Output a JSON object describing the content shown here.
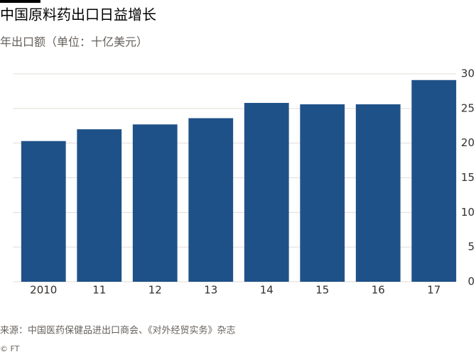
{
  "chart_data": {
    "type": "bar",
    "title": "中国原料药出口日益增长",
    "subtitle": "年出口额（单位：十亿美元）",
    "categories": [
      "2010",
      "11",
      "12",
      "13",
      "14",
      "15",
      "16",
      "17"
    ],
    "values": [
      20.3,
      22.0,
      22.7,
      23.6,
      25.8,
      25.6,
      25.6,
      29.1
    ],
    "color": "#1f5189",
    "ylim": [
      0,
      30
    ],
    "yticks": [
      0,
      5,
      10,
      15,
      20,
      25,
      30
    ],
    "grid": true,
    "source": "来源：中国医药保健品进出口商会、《对外经贸实务》杂志",
    "copyright": "© FT"
  }
}
